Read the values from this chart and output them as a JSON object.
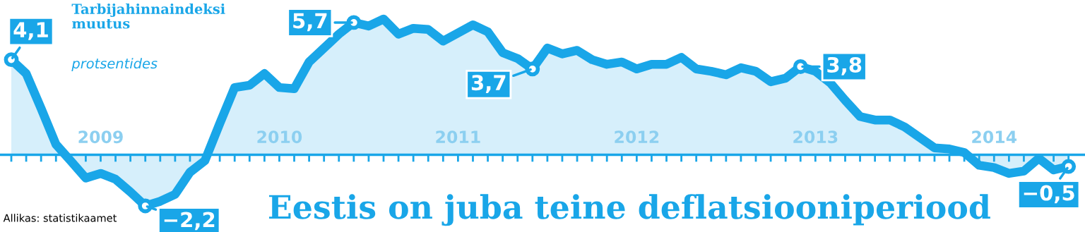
{
  "chart_data": {
    "type": "area",
    "title": "Eestis on juba teine deflatsiooniperiood",
    "subtitle": "Tarbijahinnaindeksi\nmuutus",
    "annotations": [
      "protsentides",
      "Allikas: statistikaamet"
    ],
    "categories": [
      null,
      null,
      null,
      null,
      null,
      null,
      "2009",
      null,
      null,
      null,
      null,
      null,
      null,
      null,
      null,
      null,
      null,
      null,
      "2010",
      null,
      null,
      null,
      null,
      null,
      null,
      null,
      null,
      null,
      null,
      null,
      "2011",
      null,
      null,
      null,
      null,
      null,
      null,
      null,
      null,
      null,
      null,
      null,
      "2012",
      null,
      null,
      null,
      null,
      null,
      null,
      null,
      null,
      null,
      null,
      null,
      "2013",
      null,
      null,
      null,
      null,
      null,
      null,
      null,
      null,
      null,
      null,
      null,
      "2014",
      null,
      null,
      null,
      null,
      null
    ],
    "series": [
      {
        "color": "#19a6e8",
        "values": [
          4.1,
          3.5,
          2.0,
          0.45,
          -0.27,
          -1.0,
          -0.8,
          -1.05,
          -1.6,
          -2.2,
          -2.0,
          -1.7,
          -0.75,
          -0.25,
          1.35,
          2.9,
          3.0,
          3.5,
          2.9,
          2.85,
          4.0,
          4.6,
          5.2,
          5.7,
          5.55,
          5.85,
          5.2,
          5.45,
          5.4,
          4.9,
          5.25,
          5.6,
          5.3,
          4.4,
          4.15,
          3.7,
          4.6,
          4.35,
          4.5,
          4.1,
          3.9,
          4.0,
          3.7,
          3.9,
          3.9,
          4.2,
          3.7,
          3.6,
          3.45,
          3.75,
          3.6,
          3.15,
          3.3,
          3.8,
          3.6,
          3.1,
          2.35,
          1.65,
          1.5,
          1.5,
          1.2,
          0.75,
          0.3,
          0.25,
          0.1,
          -0.45,
          -0.55,
          -0.8,
          -0.7,
          -0.15,
          -0.65,
          -0.5
        ],
        "value_labels": [
          "4,1",
          null,
          null,
          null,
          null,
          null,
          null,
          null,
          null,
          "−2,2",
          null,
          null,
          null,
          null,
          null,
          null,
          null,
          null,
          null,
          null,
          null,
          null,
          null,
          "5,7",
          null,
          null,
          null,
          null,
          null,
          null,
          null,
          null,
          null,
          null,
          null,
          "3,7",
          null,
          null,
          null,
          null,
          null,
          null,
          null,
          null,
          null,
          null,
          null,
          null,
          null,
          null,
          null,
          null,
          null,
          "3,8",
          null,
          null,
          null,
          null,
          null,
          null,
          null,
          null,
          null,
          null,
          null,
          null,
          null,
          null,
          null,
          null,
          null,
          "−0,5"
        ]
      }
    ],
    "tick_labels": "x"
  }
}
